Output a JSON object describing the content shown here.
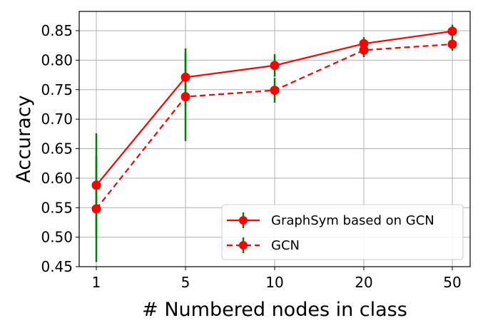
{
  "chart_data": {
    "type": "line",
    "xlabel": "# Numbered nodes in class",
    "ylabel": "Accuracy",
    "categories": [
      "1",
      "5",
      "10",
      "20",
      "50"
    ],
    "ylim": [
      0.45,
      0.86
    ],
    "yticks": [
      "0.45",
      "0.50",
      "0.55",
      "0.60",
      "0.65",
      "0.70",
      "0.75",
      "0.80",
      "0.85"
    ],
    "grid": true,
    "legend_position": "lower-right",
    "series": [
      {
        "name": "GraphSym based on GCN",
        "values": [
          0.588,
          0.771,
          0.791,
          0.828,
          0.849
        ],
        "error": [
          0.088,
          0.049,
          0.019,
          0.011,
          0.011
        ],
        "line_color": "#ff0000",
        "error_color": "#008000",
        "line_style": "solid"
      },
      {
        "name": "GCN",
        "values": [
          0.548,
          0.738,
          0.749,
          0.817,
          0.827
        ],
        "error": [
          0.09,
          0.075,
          0.021,
          0.012,
          0.011
        ],
        "line_color": "#ff0000",
        "error_color": "#008000",
        "line_style": "dashed"
      }
    ]
  }
}
